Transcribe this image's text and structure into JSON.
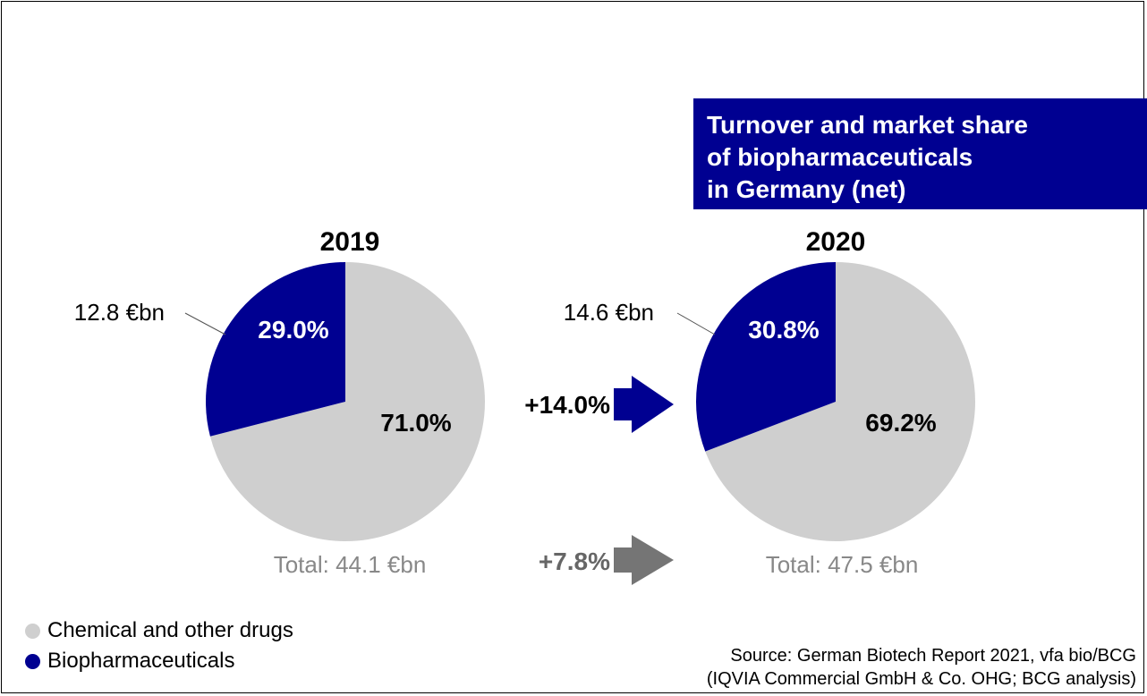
{
  "title": {
    "line1": "Turnover and market share",
    "line2": "of biopharmaceuticals",
    "line3": "in Germany (net)"
  },
  "colors": {
    "chemical": "#cfcfcf",
    "biopharma": "#000091",
    "gray_arrow": "#757575"
  },
  "chart_data": [
    {
      "type": "pie",
      "year": "2019",
      "slices": [
        {
          "name": "Biopharmaceuticals",
          "value": 29.0,
          "label": "29.0%"
        },
        {
          "name": "Chemical and other drugs",
          "value": 71.0,
          "label": "71.0%"
        }
      ],
      "biopharma_callout": "12.8 €bn",
      "total": "Total: 44.1 €bn"
    },
    {
      "type": "pie",
      "year": "2020",
      "slices": [
        {
          "name": "Biopharmaceuticals",
          "value": 30.8,
          "label": "30.8%"
        },
        {
          "name": "Chemical and other drugs",
          "value": 69.2,
          "label": "69.2%"
        }
      ],
      "biopharma_callout": "14.6 €bn",
      "total": "Total: 47.5 €bn"
    }
  ],
  "growth": {
    "biopharma": "+14.0%",
    "total": "+7.8%"
  },
  "legend": {
    "items": [
      {
        "label": "Chemical and other drugs"
      },
      {
        "label": "Biopharmaceuticals"
      }
    ]
  },
  "source": {
    "line1": "Source: German Biotech Report 2021, vfa bio/BCG",
    "line2": "(IQVIA Commercial GmbH & Co. OHG; BCG analysis)"
  }
}
